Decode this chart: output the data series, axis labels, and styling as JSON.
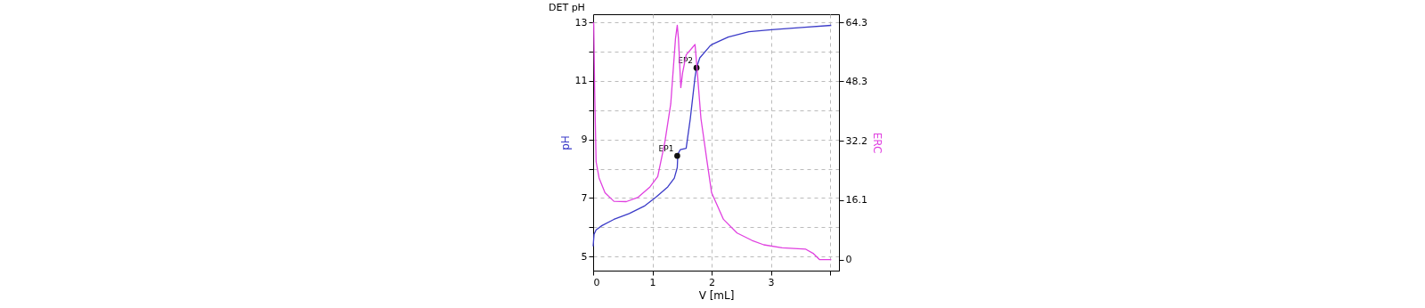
{
  "chart_data": {
    "type": "line",
    "title": "DET pH",
    "xlabel": "V [mL]",
    "ylabel": "pH",
    "y2label": "ERC",
    "xlim": [
      0,
      4.15
    ],
    "xticks": [
      0,
      1,
      2,
      3,
      {
        "value": 4,
        "label": null
      }
    ],
    "ylim": [
      4.52,
      13.28
    ],
    "yticks": [
      5,
      {
        "value": 6,
        "label": null
      },
      7,
      {
        "value": 8,
        "label": null
      },
      9,
      {
        "value": 10,
        "label": null
      },
      11,
      {
        "value": 12,
        "label": null
      },
      13
    ],
    "y2lim": [
      -3,
      66.5
    ],
    "y2ticks": [
      0,
      16.1,
      32.2,
      48.3,
      64.3
    ],
    "grid": true,
    "series": [
      {
        "color": "#3b3bc8",
        "x": [
          0,
          0.015,
          0.05,
          0.15,
          0.35,
          0.61,
          0.86,
          1.06,
          1.26,
          1.37,
          1.42,
          1.43,
          1.47,
          1.57,
          1.64,
          1.72,
          1.745,
          1.8,
          1.97,
          2.0,
          2.28,
          2.63,
          3.01,
          3.52,
          4.02
        ],
        "values": [
          5.35,
          5.76,
          5.91,
          6.06,
          6.27,
          6.47,
          6.72,
          7.03,
          7.38,
          7.68,
          8.04,
          8.5,
          8.65,
          8.7,
          9.71,
          11.13,
          11.45,
          11.79,
          12.19,
          12.24,
          12.5,
          12.68,
          12.75,
          12.83,
          12.9
        ]
      },
      {
        "axis": "y2",
        "color": "#e040e0",
        "x": [
          0,
          0.01,
          0.025,
          0.05,
          0.1,
          0.2,
          0.35,
          0.56,
          0.76,
          0.96,
          1.09,
          1.21,
          1.31,
          1.39,
          1.42,
          1.44,
          1.48,
          1.51,
          1.57,
          1.72,
          1.745,
          1.82,
          1.87,
          1.92,
          2.0,
          2.2,
          2.43,
          2.68,
          2.88,
          3.19,
          3.59,
          3.72,
          3.82,
          4.02
        ],
        "values": [
          64.3,
          63.9,
          46.2,
          26.5,
          22.1,
          18.1,
          15.8,
          15.7,
          16.9,
          19.7,
          22.5,
          31.8,
          42.2,
          59.9,
          63.5,
          59.9,
          46.6,
          50.6,
          55.5,
          58.3,
          53.5,
          38.2,
          32.6,
          26.9,
          18.1,
          10.9,
          7.2,
          5.2,
          4.0,
          3.2,
          2.8,
          1.6,
          0,
          0
        ]
      },
      {
        "type": "scatter",
        "color": "#111111",
        "x": [
          1.42,
          1.745
        ],
        "values": [
          8.44,
          11.45
        ]
      }
    ],
    "annotations": [
      {
        "text": "EP1",
        "x": 1.42,
        "y": 8.44
      },
      {
        "text": "EP2",
        "x": 1.745,
        "y": 11.45
      }
    ]
  }
}
